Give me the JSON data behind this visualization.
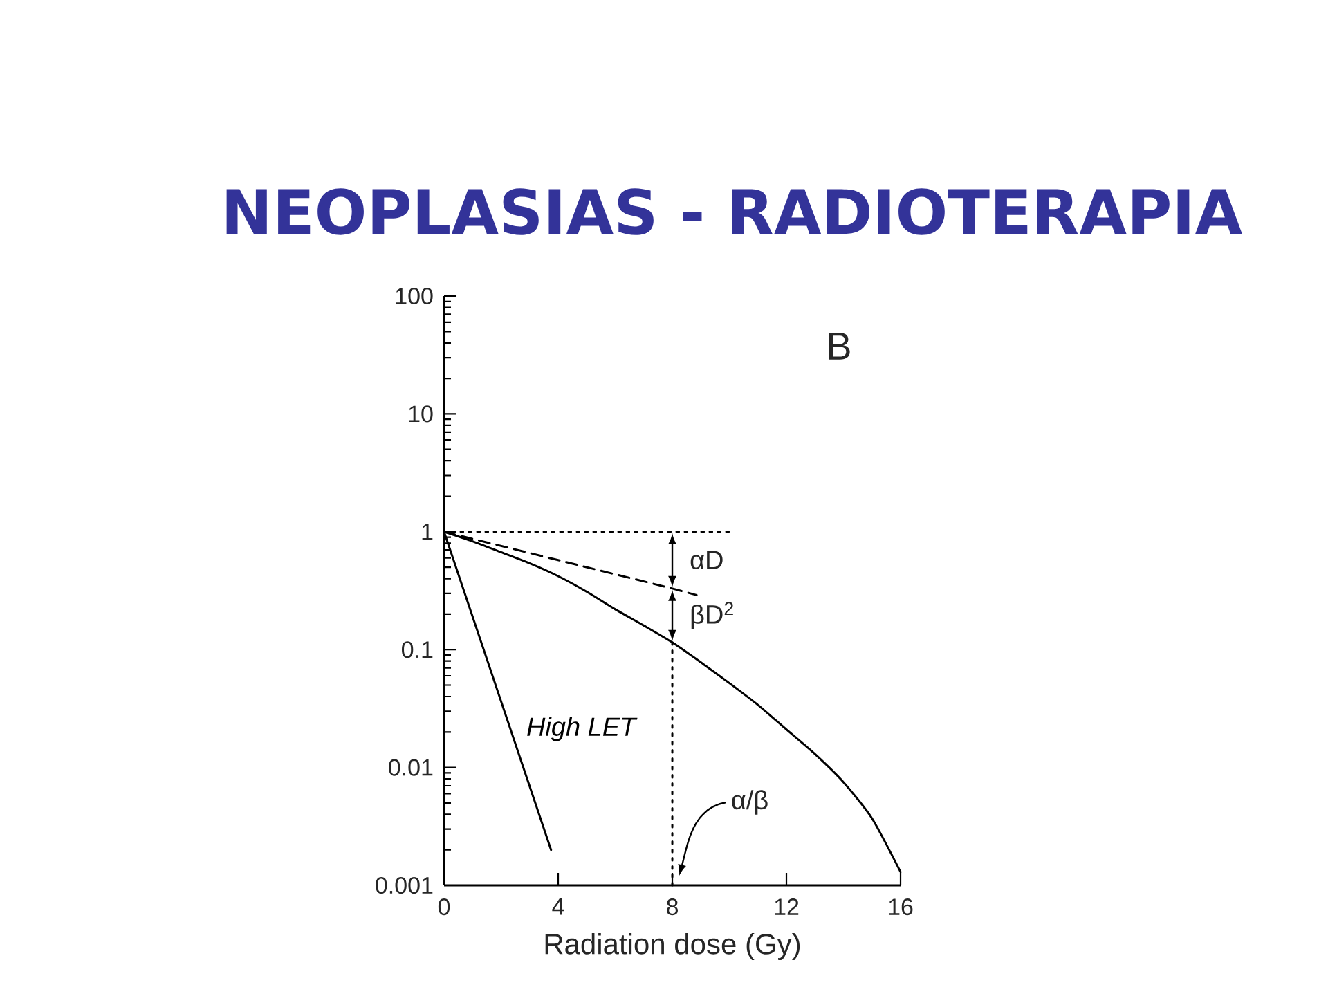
{
  "chart_data": {
    "type": "line",
    "title": "NEOPLASIAS - RADIOTERAPIA",
    "xlabel": "Radiation dose (Gy)",
    "xlim": [
      0,
      16
    ],
    "xticks": [
      0,
      4,
      8,
      12,
      16
    ],
    "ylim": [
      0.001,
      100
    ],
    "yticks": [
      0.001,
      0.01,
      0.1,
      1,
      10,
      100
    ],
    "log": "y",
    "marker": "none",
    "series": [
      {
        "color": "#000000",
        "line_style": "solid",
        "x": [
          0,
          1,
          2,
          3,
          4,
          5,
          6,
          7,
          8,
          9,
          10,
          11,
          12,
          13,
          14,
          15,
          16
        ],
        "values": [
          1,
          0.83,
          0.67,
          0.54,
          0.42,
          0.31,
          0.22,
          0.16,
          0.115,
          0.078,
          0.052,
          0.034,
          0.021,
          0.013,
          0.0075,
          0.0037,
          0.0013
        ]
      },
      {
        "name": "High LET",
        "color": "#000000",
        "line_style": "solid",
        "x": [
          0,
          3.75
        ],
        "values": [
          1,
          0.002
        ]
      },
      {
        "color": "#000000",
        "line_style": "dashed",
        "x": [
          0,
          8,
          8.85
        ],
        "values": [
          1,
          0.33,
          0.29
        ]
      },
      {
        "color": "#000000",
        "line_style": "dotted",
        "x": [
          0,
          8,
          10
        ],
        "values": [
          1,
          1,
          1
        ]
      }
    ],
    "ref_lines": [
      {
        "axis": "x",
        "value": 8,
        "label": "α/β",
        "line_style": "dotted",
        "color": "#000000"
      }
    ],
    "annotations": [
      "B",
      {
        "text": "αD",
        "x": 8,
        "y": 1
      },
      {
        "text": "βD$^{2}$",
        "x": 8,
        "y": 0.33
      }
    ]
  }
}
